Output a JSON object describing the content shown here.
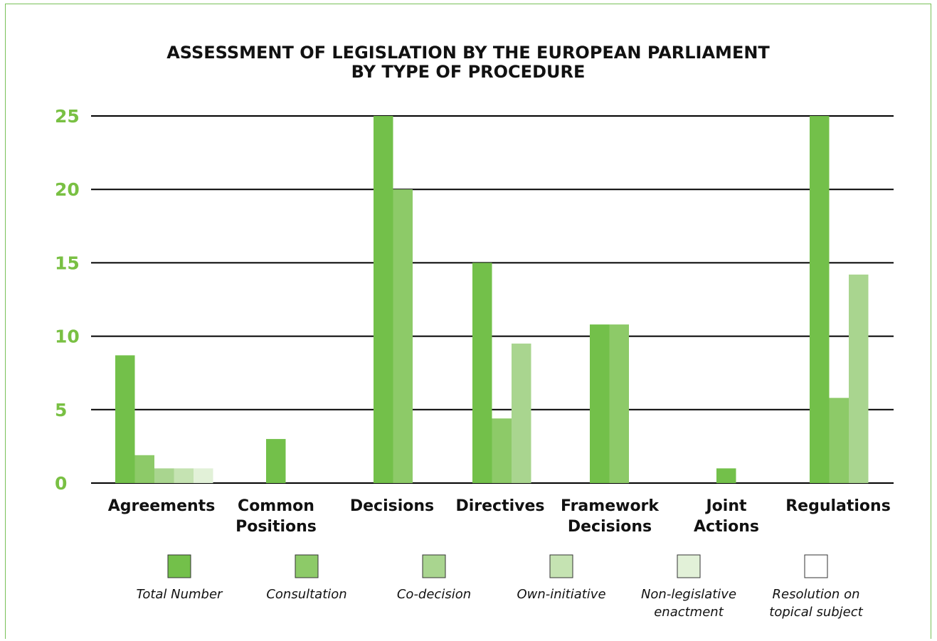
{
  "chart_data": {
    "type": "bar",
    "title_lines": [
      "ASSESSMENT OF LEGISLATION BY THE EUROPEAN PARLIAMENT",
      "BY TYPE OF PROCEDURE"
    ],
    "categories": [
      [
        "Agreements"
      ],
      [
        "Common",
        "Positions"
      ],
      [
        "Decisions"
      ],
      [
        "Directives"
      ],
      [
        "Framework",
        "Decisions"
      ],
      [
        "Joint",
        "Actions"
      ],
      [
        "Regulations"
      ]
    ],
    "series": [
      {
        "name": "Total Number",
        "color": "#73c04a",
        "values": [
          8.7,
          3,
          25,
          15,
          10.8,
          1,
          25
        ]
      },
      {
        "name": "Consultation",
        "color": "#8dca68",
        "values": [
          1.9,
          0,
          20,
          4.4,
          10.8,
          0,
          5.8
        ]
      },
      {
        "name": "Co-decision",
        "color": "#a9d58f",
        "values": [
          1,
          0,
          0,
          9.5,
          0,
          0,
          14.2
        ]
      },
      {
        "name": "Own-initiative",
        "color": "#c5e3b2",
        "values": [
          1,
          0,
          0,
          0,
          0,
          0,
          0
        ]
      },
      {
        "name": "Non-legislative enactment",
        "color": "#e2f1d8",
        "values": [
          1,
          0,
          0,
          0,
          0,
          0,
          0
        ]
      },
      {
        "name": "Resolution on topical subject",
        "color": "#ffffff",
        "values": [
          0,
          0,
          0,
          0,
          0,
          0,
          0
        ]
      }
    ],
    "legend_labels": [
      [
        "Total Number"
      ],
      [
        "Consultation"
      ],
      [
        "Co-decision"
      ],
      [
        "Own-initiative"
      ],
      [
        "Non-legislative",
        "enactment"
      ],
      [
        "Resolution on",
        "topical subject"
      ]
    ],
    "yticks": [
      0,
      5,
      10,
      15,
      20,
      25
    ],
    "ylim": [
      0,
      25
    ],
    "grid": true,
    "legend_position": "bottom",
    "colors": {
      "accent": "#79c043",
      "frame": "#78c058",
      "gridline": "#000000"
    }
  }
}
